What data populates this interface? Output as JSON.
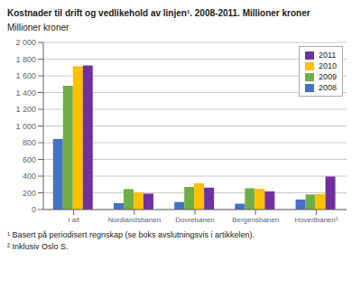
{
  "chart_data": {
    "type": "bar",
    "title": "Kostnader til drift og vedlikehold av linjen¹. 2008-2011. Millioner kroner",
    "ylabel": "Millioner kroner",
    "categories": [
      "I alt",
      "Nordlandsbanen",
      "Dovrebanen",
      "Bergensbanen",
      "Hovedbanen²"
    ],
    "series": [
      {
        "name": "2008",
        "color": "#4472c4",
        "values": [
          845,
          75,
          90,
          70,
          120
        ]
      },
      {
        "name": "2009",
        "color": "#70ad47",
        "values": [
          1480,
          245,
          270,
          255,
          180
        ]
      },
      {
        "name": "2010",
        "color": "#ffc000",
        "values": [
          1715,
          205,
          315,
          248,
          185
        ]
      },
      {
        "name": "2011",
        "color": "#7030a0",
        "values": [
          1725,
          190,
          262,
          218,
          395
        ]
      }
    ],
    "ylim": [
      0,
      2000
    ],
    "yticks": [
      0,
      200,
      400,
      600,
      800,
      {
        "value": 1000,
        "label": "1 000"
      },
      {
        "value": 1200,
        "label": "1 200"
      },
      {
        "value": 1400,
        "label": "1 400"
      },
      {
        "value": 1600,
        "label": "1 600"
      },
      {
        "value": 1800,
        "label": "1 800"
      },
      {
        "value": 2000,
        "label": "2 000"
      }
    ],
    "grid": true,
    "legend": "upper right",
    "annotations": [
      "¹ Basert på periodisert regnskap (se boks avslutningsvis i artikkelen).",
      "² Inklusiv Oslo S."
    ]
  }
}
